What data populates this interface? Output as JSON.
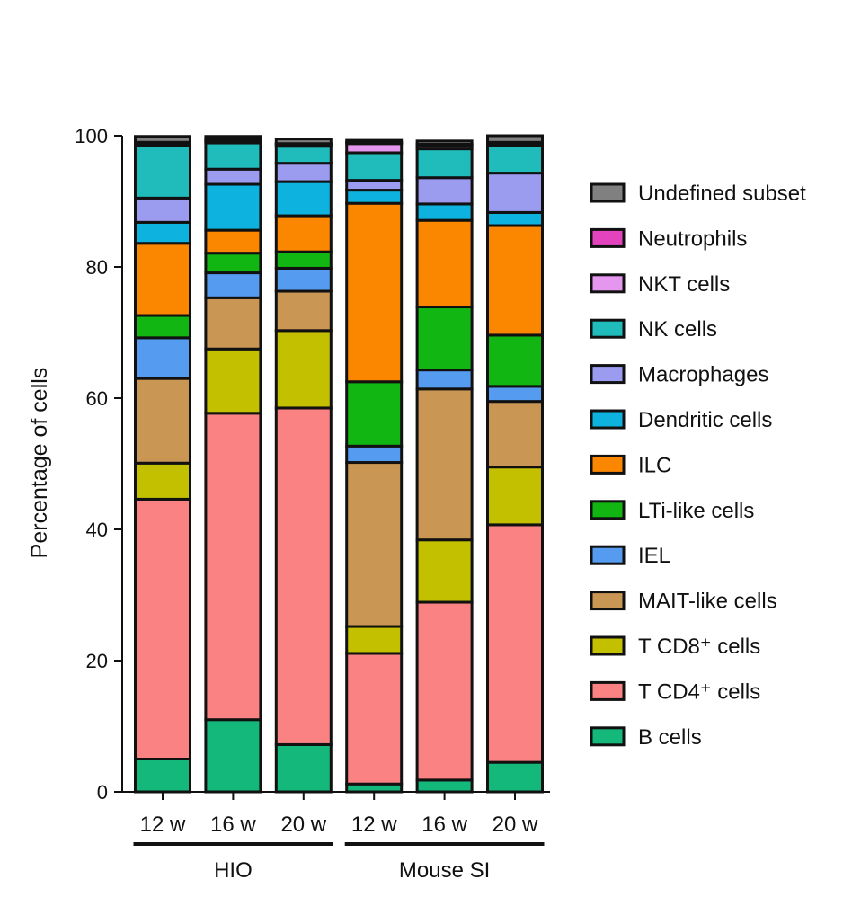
{
  "chart_data": {
    "type": "bar",
    "stacked": true,
    "ylabel": "Percentage of cells",
    "ylim": [
      0,
      100
    ],
    "yticks": [
      0,
      20,
      40,
      60,
      80,
      100
    ],
    "categories": [
      "12 w",
      "16 w",
      "20 w",
      "12 w",
      "16 w",
      "20 w"
    ],
    "groups": [
      {
        "label": "HIO",
        "members": [
          0,
          1,
          2
        ]
      },
      {
        "label": "Mouse SI",
        "members": [
          3,
          4,
          5
        ]
      }
    ],
    "legend_position": "right",
    "series": [
      {
        "name": "B cells",
        "color": "#14b87a",
        "values": [
          5.0,
          11.0,
          7.2,
          1.2,
          1.8,
          4.5
        ]
      },
      {
        "name": "T CD4⁺ cells",
        "color": "#fa8282",
        "values": [
          39.6,
          46.7,
          51.3,
          19.9,
          27.1,
          36.2
        ]
      },
      {
        "name": "T CD8⁺ cells",
        "color": "#c3c000",
        "values": [
          5.5,
          9.8,
          11.8,
          4.1,
          9.5,
          8.8
        ]
      },
      {
        "name": "MAIT-like cells",
        "color": "#c99654",
        "values": [
          12.9,
          7.8,
          6.0,
          25.0,
          23.0,
          10.0
        ]
      },
      {
        "name": "IEL",
        "color": "#559bf0",
        "values": [
          6.2,
          3.8,
          3.5,
          2.5,
          2.9,
          2.3
        ]
      },
      {
        "name": "LTi-like cells",
        "color": "#12b612",
        "values": [
          3.4,
          3.0,
          2.5,
          9.8,
          9.6,
          7.8
        ]
      },
      {
        "name": "ILC",
        "color": "#fb8700",
        "values": [
          11.0,
          3.5,
          5.5,
          27.2,
          13.2,
          16.7
        ]
      },
      {
        "name": "Dendritic cells",
        "color": "#0eb2de",
        "values": [
          3.2,
          7.0,
          5.2,
          2.0,
          2.5,
          2.0
        ]
      },
      {
        "name": "Macrophages",
        "color": "#9b9bf0",
        "values": [
          3.7,
          2.3,
          2.8,
          1.5,
          4.0,
          6.0
        ]
      },
      {
        "name": "NK cells",
        "color": "#20bcbc",
        "values": [
          8.0,
          4.0,
          2.6,
          4.2,
          4.4,
          4.2
        ]
      },
      {
        "name": "NKT cells",
        "color": "#e596ef",
        "values": [
          0.3,
          0.3,
          0.3,
          1.4,
          0.5,
          0.3
        ]
      },
      {
        "name": "Neutrophils",
        "color": "#e344be",
        "values": [
          0.2,
          0.2,
          0.1,
          0.2,
          0.2,
          0.2
        ]
      },
      {
        "name": "Undefined subset",
        "color": "#808080",
        "values": [
          0.9,
          0.5,
          0.7,
          0.3,
          0.5,
          1.0
        ]
      }
    ],
    "legend_order": [
      "Undefined subset",
      "Neutrophils",
      "NKT cells",
      "NK cells",
      "Macrophages",
      "Dendritic cells",
      "ILC",
      "LTi-like cells",
      "IEL",
      "MAIT-like cells",
      "T CD8⁺ cells",
      "T CD4⁺ cells",
      "B cells"
    ]
  }
}
